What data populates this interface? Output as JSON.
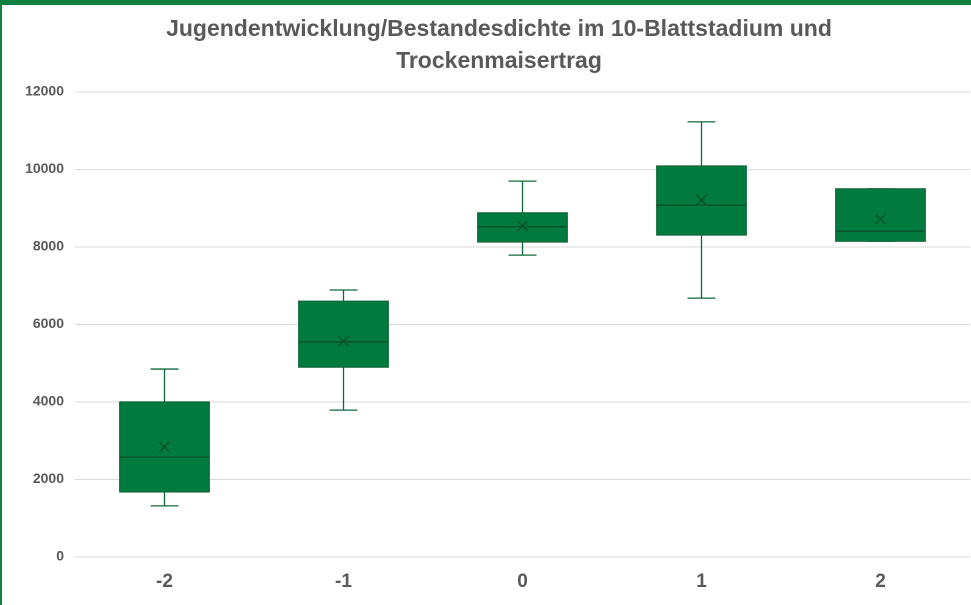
{
  "chart_data": {
    "type": "box",
    "title": [
      "Jugendentwicklung/Bestandesdichte im 10-Blattstadium und",
      "Trockenmaisertrag"
    ],
    "categories": [
      "-2",
      "-1",
      "0",
      "1",
      "2"
    ],
    "series": [
      {
        "color": "#007a3d",
        "edge": "#10683a",
        "min": [
          1320,
          3790,
          7790,
          6680,
          8150
        ],
        "q1": [
          1680,
          4900,
          8130,
          8310,
          8150
        ],
        "median": [
          2580,
          5550,
          8520,
          9080,
          8410
        ],
        "q3": [
          4000,
          6600,
          8880,
          10090,
          9500
        ],
        "max": [
          4850,
          6890,
          9700,
          11230,
          9500
        ],
        "mean": [
          2840,
          5570,
          8540,
          9210,
          8720
        ]
      }
    ],
    "ylim": [
      0,
      12000
    ],
    "yticks": [
      0,
      2000,
      4000,
      6000,
      8000,
      10000,
      12000
    ],
    "grid": true
  }
}
